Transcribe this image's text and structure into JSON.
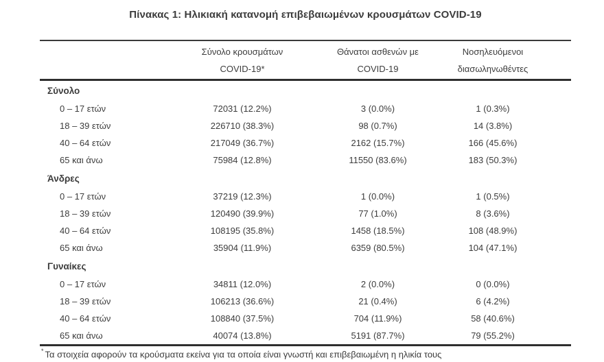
{
  "title": "Πίνακας 1: Ηλικιακή κατανομή επιβεβαιωμένων κρουσμάτων COVID-19",
  "columns": [
    {
      "line1": "Σύνολο κρουσμάτων",
      "line2": "COVID-19*"
    },
    {
      "line1": "Θάνατοι ασθενών με",
      "line2": "COVID-19"
    },
    {
      "line1": "Νοσηλευόμενοι",
      "line2": "διασωληνωθέντες"
    }
  ],
  "sections": [
    {
      "label": "Σύνολο",
      "rows": [
        {
          "age": "0 – 17 ετών",
          "cases": "72031 (12.2%)",
          "deaths": "3 (0.0%)",
          "intubated": "1 (0.3%)"
        },
        {
          "age": "18 – 39 ετών",
          "cases": "226710 (38.3%)",
          "deaths": "98 (0.7%)",
          "intubated": "14 (3.8%)"
        },
        {
          "age": "40 – 64 ετών",
          "cases": "217049 (36.7%)",
          "deaths": "2162 (15.7%)",
          "intubated": "166 (45.6%)"
        },
        {
          "age": "65 και άνω",
          "cases": "75984 (12.8%)",
          "deaths": "11550 (83.6%)",
          "intubated": "183 (50.3%)"
        }
      ]
    },
    {
      "label": "Άνδρες",
      "rows": [
        {
          "age": "0 – 17 ετών",
          "cases": "37219 (12.3%)",
          "deaths": "1 (0.0%)",
          "intubated": "1 (0.5%)"
        },
        {
          "age": "18 – 39 ετών",
          "cases": "120490 (39.9%)",
          "deaths": "77 (1.0%)",
          "intubated": "8 (3.6%)"
        },
        {
          "age": "40 – 64 ετών",
          "cases": "108195 (35.8%)",
          "deaths": "1458 (18.5%)",
          "intubated": "108 (48.9%)"
        },
        {
          "age": "65 και άνω",
          "cases": "35904 (11.9%)",
          "deaths": "6359 (80.5%)",
          "intubated": "104 (47.1%)"
        }
      ]
    },
    {
      "label": "Γυναίκες",
      "rows": [
        {
          "age": "0 – 17 ετών",
          "cases": "34811 (12.0%)",
          "deaths": "2 (0.0%)",
          "intubated": "0 (0.0%)"
        },
        {
          "age": "18 – 39 ετών",
          "cases": "106213 (36.6%)",
          "deaths": "21 (0.4%)",
          "intubated": "6 (4.2%)"
        },
        {
          "age": "40 – 64 ετών",
          "cases": "108840 (37.5%)",
          "deaths": "704 (11.9%)",
          "intubated": "58 (40.6%)"
        },
        {
          "age": "65 και άνω",
          "cases": "40074 (13.8%)",
          "deaths": "5191 (87.7%)",
          "intubated": "79 (55.2%)"
        }
      ]
    }
  ],
  "footnote": {
    "marker": "*",
    "text": "Τα στοιχεία αφορούν τα κρούσματα εκείνα για τα οποία είναι γνωστή και επιβεβαιωμένη η ηλικία τους"
  },
  "colors": {
    "text": "#3c3c3c",
    "rule": "#2e2e2e",
    "background": "#ffffff"
  }
}
